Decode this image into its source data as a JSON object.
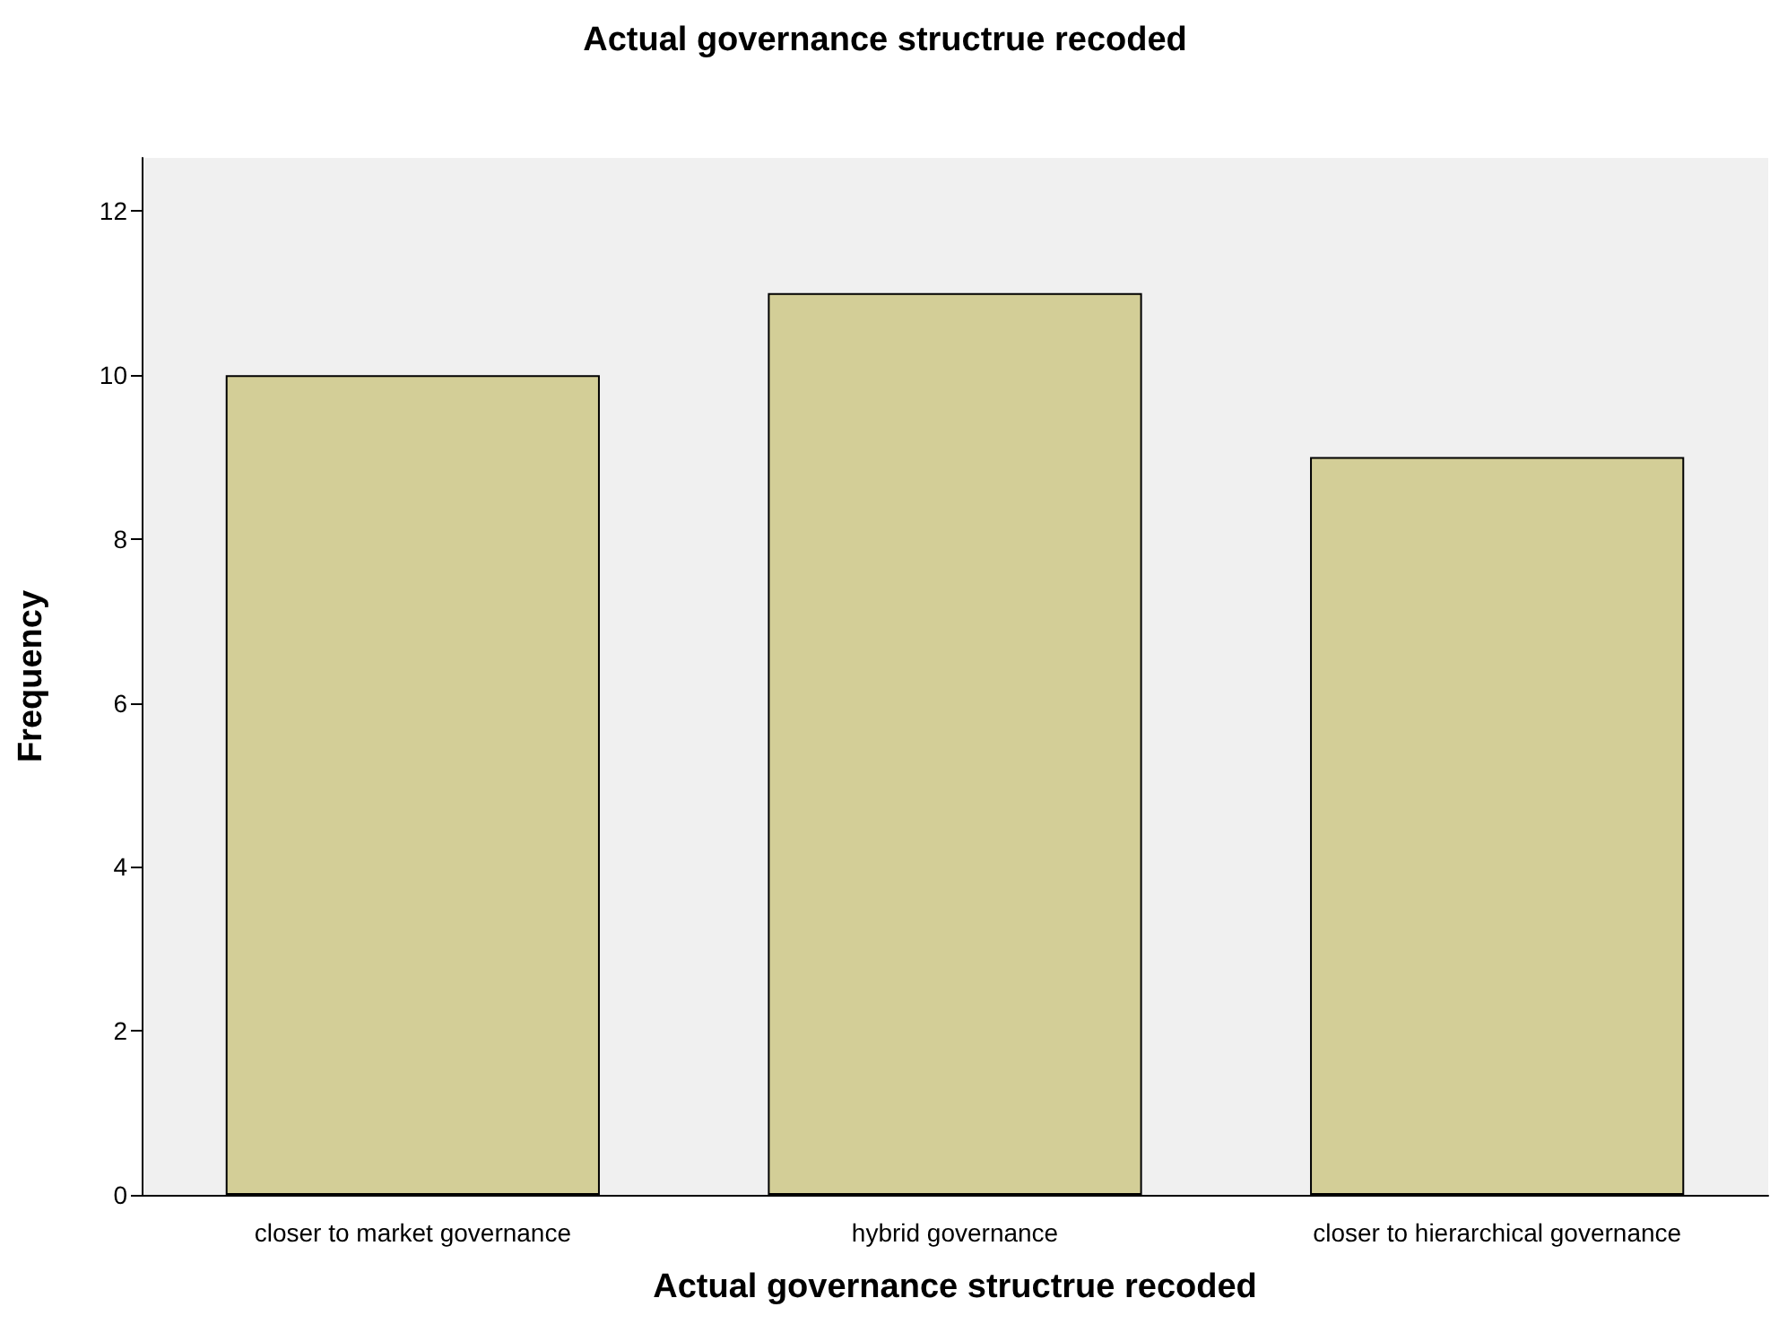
{
  "chart_data": {
    "type": "bar",
    "title": "Actual governance structrue recoded",
    "xlabel": "Actual governance structrue recoded",
    "ylabel": "Frequency",
    "categories": [
      "closer to market governance",
      "hybrid governance",
      "closer to hierarchical governance"
    ],
    "values": [
      10,
      11,
      9
    ],
    "color": "#d3ce97",
    "ylim": [
      0,
      12.65
    ],
    "yticks": [
      0,
      2,
      4,
      6,
      8,
      10,
      12
    ],
    "grid": false
  }
}
